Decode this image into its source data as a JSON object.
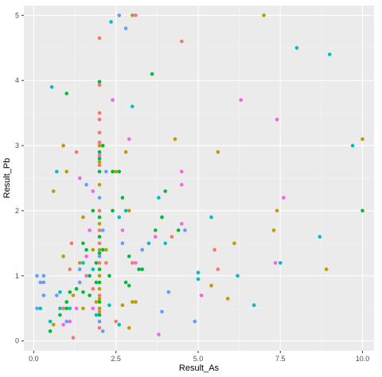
{
  "chart_data": {
    "type": "scatter",
    "xlabel": "Result_As",
    "ylabel": "Result_Pb",
    "xlim": [
      -0.3,
      10.35
    ],
    "ylim": [
      -0.15,
      5.15
    ],
    "x_ticks": [
      0,
      2.5,
      5,
      7.5,
      10
    ],
    "x_tick_labels": [
      "0.0",
      "2.5",
      "5.0",
      "7.5",
      "10.0"
    ],
    "y_ticks": [
      0,
      1,
      2,
      3,
      4,
      5
    ],
    "y_tick_labels": [
      "0",
      "1",
      "2",
      "3",
      "4",
      "5"
    ],
    "grid": true,
    "legend": "none",
    "background": "#ebebeb",
    "grid_major_color": "#ffffff",
    "palette": [
      "#f8766d",
      "#b79f00",
      "#00ba38",
      "#00bfc4",
      "#619cff",
      "#f564e3"
    ],
    "points": [
      [
        0.1,
        1.0,
        4
      ],
      [
        0.1,
        0.5,
        4
      ],
      [
        0.2,
        0.9,
        4
      ],
      [
        0.2,
        0.5,
        3
      ],
      [
        0.3,
        1.0,
        4
      ],
      [
        0.3,
        0.9,
        4
      ],
      [
        0.3,
        0.7,
        4
      ],
      [
        0.5,
        0.3,
        3
      ],
      [
        0.5,
        0.15,
        2
      ],
      [
        0.55,
        3.9,
        3
      ],
      [
        0.6,
        2.3,
        1
      ],
      [
        0.6,
        0.25,
        1
      ],
      [
        0.7,
        2.6,
        3
      ],
      [
        0.7,
        0.7,
        4
      ],
      [
        0.8,
        0.75,
        3
      ],
      [
        0.8,
        0.5,
        3
      ],
      [
        0.8,
        0.4,
        2
      ],
      [
        0.9,
        3.0,
        1
      ],
      [
        0.9,
        1.3,
        1
      ],
      [
        0.9,
        0.5,
        0
      ],
      [
        0.9,
        0.25,
        5
      ],
      [
        1.0,
        3.8,
        2
      ],
      [
        1.0,
        2.6,
        1
      ],
      [
        1.0,
        0.6,
        2
      ],
      [
        1.0,
        0.5,
        2
      ],
      [
        1.0,
        0.3,
        4
      ],
      [
        1.1,
        1.1,
        0
      ],
      [
        1.1,
        0.75,
        2
      ],
      [
        1.1,
        0.5,
        3
      ],
      [
        1.1,
        0.3,
        5
      ],
      [
        1.15,
        1.5,
        0
      ],
      [
        1.2,
        0.7,
        1
      ],
      [
        1.2,
        0.05,
        0
      ],
      [
        1.3,
        2.9,
        0
      ],
      [
        1.3,
        0.8,
        2
      ],
      [
        1.3,
        0.5,
        5
      ],
      [
        1.4,
        2.5,
        5
      ],
      [
        1.4,
        1.2,
        1
      ],
      [
        1.4,
        1.1,
        4
      ],
      [
        1.4,
        0.9,
        4
      ],
      [
        1.5,
        1.9,
        1
      ],
      [
        1.5,
        1.5,
        2
      ],
      [
        1.5,
        1.2,
        3
      ],
      [
        1.5,
        0.75,
        2
      ],
      [
        1.5,
        0.5,
        1
      ],
      [
        1.6,
        2.4,
        4
      ],
      [
        1.6,
        1.4,
        2
      ],
      [
        1.6,
        1.3,
        5
      ],
      [
        1.6,
        1.0,
        5
      ],
      [
        1.7,
        1.7,
        5
      ],
      [
        1.7,
        1.0,
        2
      ],
      [
        1.7,
        0.7,
        2
      ],
      [
        1.8,
        2.3,
        5
      ],
      [
        1.8,
        2.0,
        2
      ],
      [
        1.8,
        1.4,
        1
      ],
      [
        1.8,
        1.1,
        3
      ],
      [
        1.8,
        0.8,
        0
      ],
      [
        1.8,
        0.5,
        5
      ],
      [
        1.9,
        1.2,
        2
      ],
      [
        1.9,
        0.9,
        2
      ],
      [
        1.9,
        0.6,
        1
      ],
      [
        1.9,
        0.4,
        3
      ],
      [
        2.0,
        4.65,
        0
      ],
      [
        2.0,
        3.98,
        2
      ],
      [
        2.0,
        3.93,
        0
      ],
      [
        2.0,
        3.5,
        0
      ],
      [
        2.0,
        3.4,
        0
      ],
      [
        2.0,
        3.2,
        0
      ],
      [
        2.0,
        3.05,
        0
      ],
      [
        2.0,
        3.0,
        1
      ],
      [
        2.0,
        2.9,
        2
      ],
      [
        2.0,
        2.85,
        5
      ],
      [
        2.0,
        2.8,
        2
      ],
      [
        2.0,
        2.75,
        1
      ],
      [
        2.0,
        2.7,
        0
      ],
      [
        2.0,
        2.6,
        2
      ],
      [
        2.0,
        2.4,
        1
      ],
      [
        2.0,
        2.2,
        4
      ],
      [
        2.0,
        2.0,
        0
      ],
      [
        2.0,
        1.9,
        2
      ],
      [
        2.0,
        1.8,
        1
      ],
      [
        2.0,
        1.7,
        0
      ],
      [
        2.0,
        1.6,
        2
      ],
      [
        2.0,
        1.5,
        0
      ],
      [
        2.0,
        1.4,
        1
      ],
      [
        2.0,
        1.35,
        2
      ],
      [
        2.0,
        1.3,
        4
      ],
      [
        2.0,
        1.2,
        0
      ],
      [
        2.0,
        1.1,
        2
      ],
      [
        2.0,
        1.0,
        1
      ],
      [
        2.0,
        0.9,
        2
      ],
      [
        2.0,
        0.8,
        1
      ],
      [
        2.0,
        0.7,
        0
      ],
      [
        2.0,
        0.65,
        1
      ],
      [
        2.0,
        0.6,
        2
      ],
      [
        2.0,
        0.5,
        1
      ],
      [
        2.0,
        0.45,
        0
      ],
      [
        2.0,
        0.4,
        2
      ],
      [
        2.0,
        0.3,
        4
      ],
      [
        2.0,
        0.2,
        0
      ],
      [
        2.1,
        3.0,
        2
      ],
      [
        2.1,
        1.7,
        4
      ],
      [
        2.1,
        1.4,
        2
      ],
      [
        2.1,
        0.15,
        4
      ],
      [
        2.2,
        2.6,
        4
      ],
      [
        2.2,
        1.4,
        1
      ],
      [
        2.2,
        1.2,
        0
      ],
      [
        2.3,
        1.0,
        2
      ],
      [
        2.3,
        0.55,
        3
      ],
      [
        2.35,
        4.9,
        3
      ],
      [
        2.4,
        3.7,
        5
      ],
      [
        2.4,
        2.6,
        2
      ],
      [
        2.4,
        2.0,
        2
      ],
      [
        2.5,
        0.3,
        0
      ],
      [
        2.5,
        2.6,
        1
      ],
      [
        2.6,
        2.6,
        2
      ],
      [
        2.6,
        1.9,
        3
      ],
      [
        2.6,
        0.25,
        3
      ],
      [
        2.6,
        5.0,
        4
      ],
      [
        2.7,
        2.2,
        2
      ],
      [
        2.7,
        1.7,
        5
      ],
      [
        2.7,
        1.5,
        4
      ],
      [
        2.7,
        0.55,
        1
      ],
      [
        2.8,
        4.8,
        4
      ],
      [
        2.8,
        2.9,
        1
      ],
      [
        2.8,
        2.0,
        3
      ],
      [
        2.8,
        0.9,
        2
      ],
      [
        2.9,
        3.1,
        5
      ],
      [
        2.9,
        2.0,
        1
      ],
      [
        2.9,
        1.3,
        2
      ],
      [
        2.9,
        0.85,
        2
      ],
      [
        2.9,
        0.2,
        1
      ],
      [
        3.0,
        5.0,
        1
      ],
      [
        3.0,
        3.6,
        3
      ],
      [
        3.0,
        1.2,
        0
      ],
      [
        3.0,
        0.6,
        1
      ],
      [
        3.1,
        5.0,
        5
      ],
      [
        3.1,
        1.2,
        5
      ],
      [
        3.1,
        0.6,
        1
      ],
      [
        3.2,
        1.1,
        2
      ],
      [
        3.3,
        1.4,
        4
      ],
      [
        3.3,
        1.1,
        2
      ],
      [
        3.5,
        1.5,
        3
      ],
      [
        3.6,
        4.1,
        2
      ],
      [
        3.7,
        1.6,
        5
      ],
      [
        3.7,
        1.7,
        2
      ],
      [
        3.8,
        2.2,
        3
      ],
      [
        3.8,
        0.1,
        5
      ],
      [
        3.9,
        1.9,
        2
      ],
      [
        3.9,
        0.45,
        4
      ],
      [
        4.0,
        2.3,
        2
      ],
      [
        4.0,
        1.5,
        3
      ],
      [
        4.1,
        0.75,
        4
      ],
      [
        4.2,
        1.6,
        0
      ],
      [
        4.3,
        3.1,
        1
      ],
      [
        4.4,
        1.7,
        2
      ],
      [
        4.5,
        4.6,
        0
      ],
      [
        4.5,
        2.6,
        5
      ],
      [
        4.5,
        2.4,
        5
      ],
      [
        4.5,
        1.8,
        5
      ],
      [
        4.6,
        1.7,
        4
      ],
      [
        4.9,
        0.3,
        4
      ],
      [
        5.0,
        1.05,
        3
      ],
      [
        5.0,
        0.95,
        3
      ],
      [
        5.1,
        0.7,
        5
      ],
      [
        5.4,
        1.9,
        3
      ],
      [
        5.4,
        0.85,
        1
      ],
      [
        5.5,
        1.4,
        0
      ],
      [
        5.6,
        2.9,
        1
      ],
      [
        5.6,
        1.1,
        0
      ],
      [
        5.9,
        0.65,
        1
      ],
      [
        6.1,
        1.5,
        1
      ],
      [
        6.2,
        1.0,
        3
      ],
      [
        6.3,
        3.7,
        5
      ],
      [
        6.7,
        0.55,
        3
      ],
      [
        7.0,
        5.0,
        1
      ],
      [
        7.3,
        1.7,
        1
      ],
      [
        7.35,
        1.2,
        5
      ],
      [
        7.4,
        3.4,
        5
      ],
      [
        7.4,
        2.0,
        1
      ],
      [
        7.5,
        1.2,
        3
      ],
      [
        7.6,
        2.2,
        5
      ],
      [
        8.0,
        4.5,
        3
      ],
      [
        8.7,
        1.6,
        3
      ],
      [
        8.9,
        1.1,
        1
      ],
      [
        9.0,
        4.4,
        3
      ],
      [
        9.7,
        3.0,
        3
      ],
      [
        10.0,
        3.1,
        1
      ],
      [
        10.0,
        2.0,
        2
      ]
    ]
  }
}
